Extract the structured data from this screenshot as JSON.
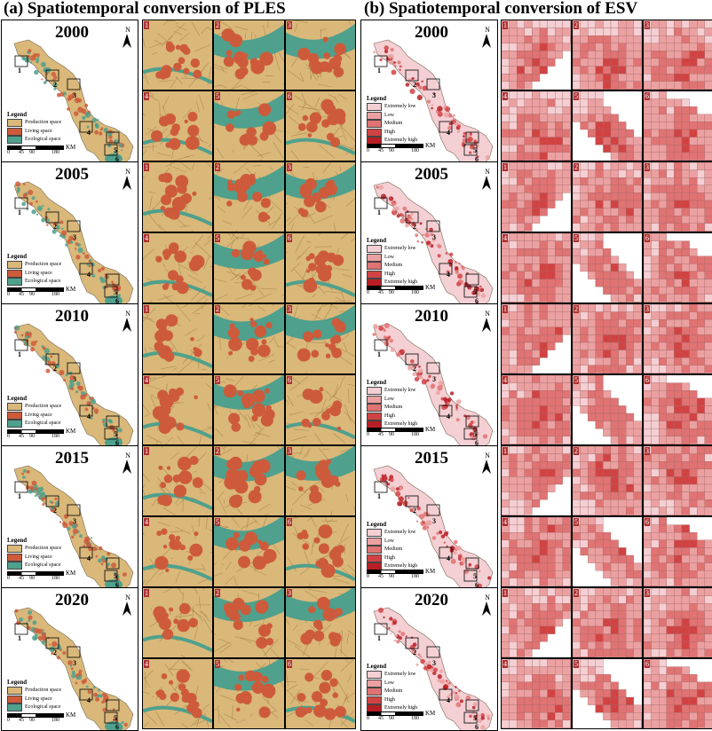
{
  "panels": {
    "a": {
      "title": "(a) Spatiotemporal conversion of PLES"
    },
    "b": {
      "title": "(b) Spatiotemporal conversion of ESV"
    }
  },
  "years": [
    "2000",
    "2005",
    "2010",
    "2015",
    "2020"
  ],
  "north_label": "N",
  "inset_labels": [
    "1",
    "2",
    "3",
    "4",
    "5",
    "6"
  ],
  "ples_legend": {
    "heading": "Legend",
    "items": [
      {
        "label": "Production space",
        "color": "#d9b87a"
      },
      {
        "label": "Living space",
        "color": "#cd5b3b"
      },
      {
        "label": "Ecological space",
        "color": "#4fa08c"
      }
    ]
  },
  "esv_legend": {
    "heading": "Legend",
    "items": [
      {
        "label": "Extremely low",
        "color": "#f4cfd3"
      },
      {
        "label": "Low",
        "color": "#eba1a1"
      },
      {
        "label": "Medium",
        "color": "#e07373"
      },
      {
        "label": "High",
        "color": "#d14343"
      },
      {
        "label": "Extremely high",
        "color": "#b81f24"
      }
    ]
  },
  "scale": {
    "ticks": [
      "0",
      "45",
      "90",
      "180"
    ],
    "unit": "KM"
  },
  "colors": {
    "production": "#d9b87a",
    "living": "#cd5b3b",
    "ecological": "#4fa08c",
    "inset_label_bg": "#b03030"
  }
}
